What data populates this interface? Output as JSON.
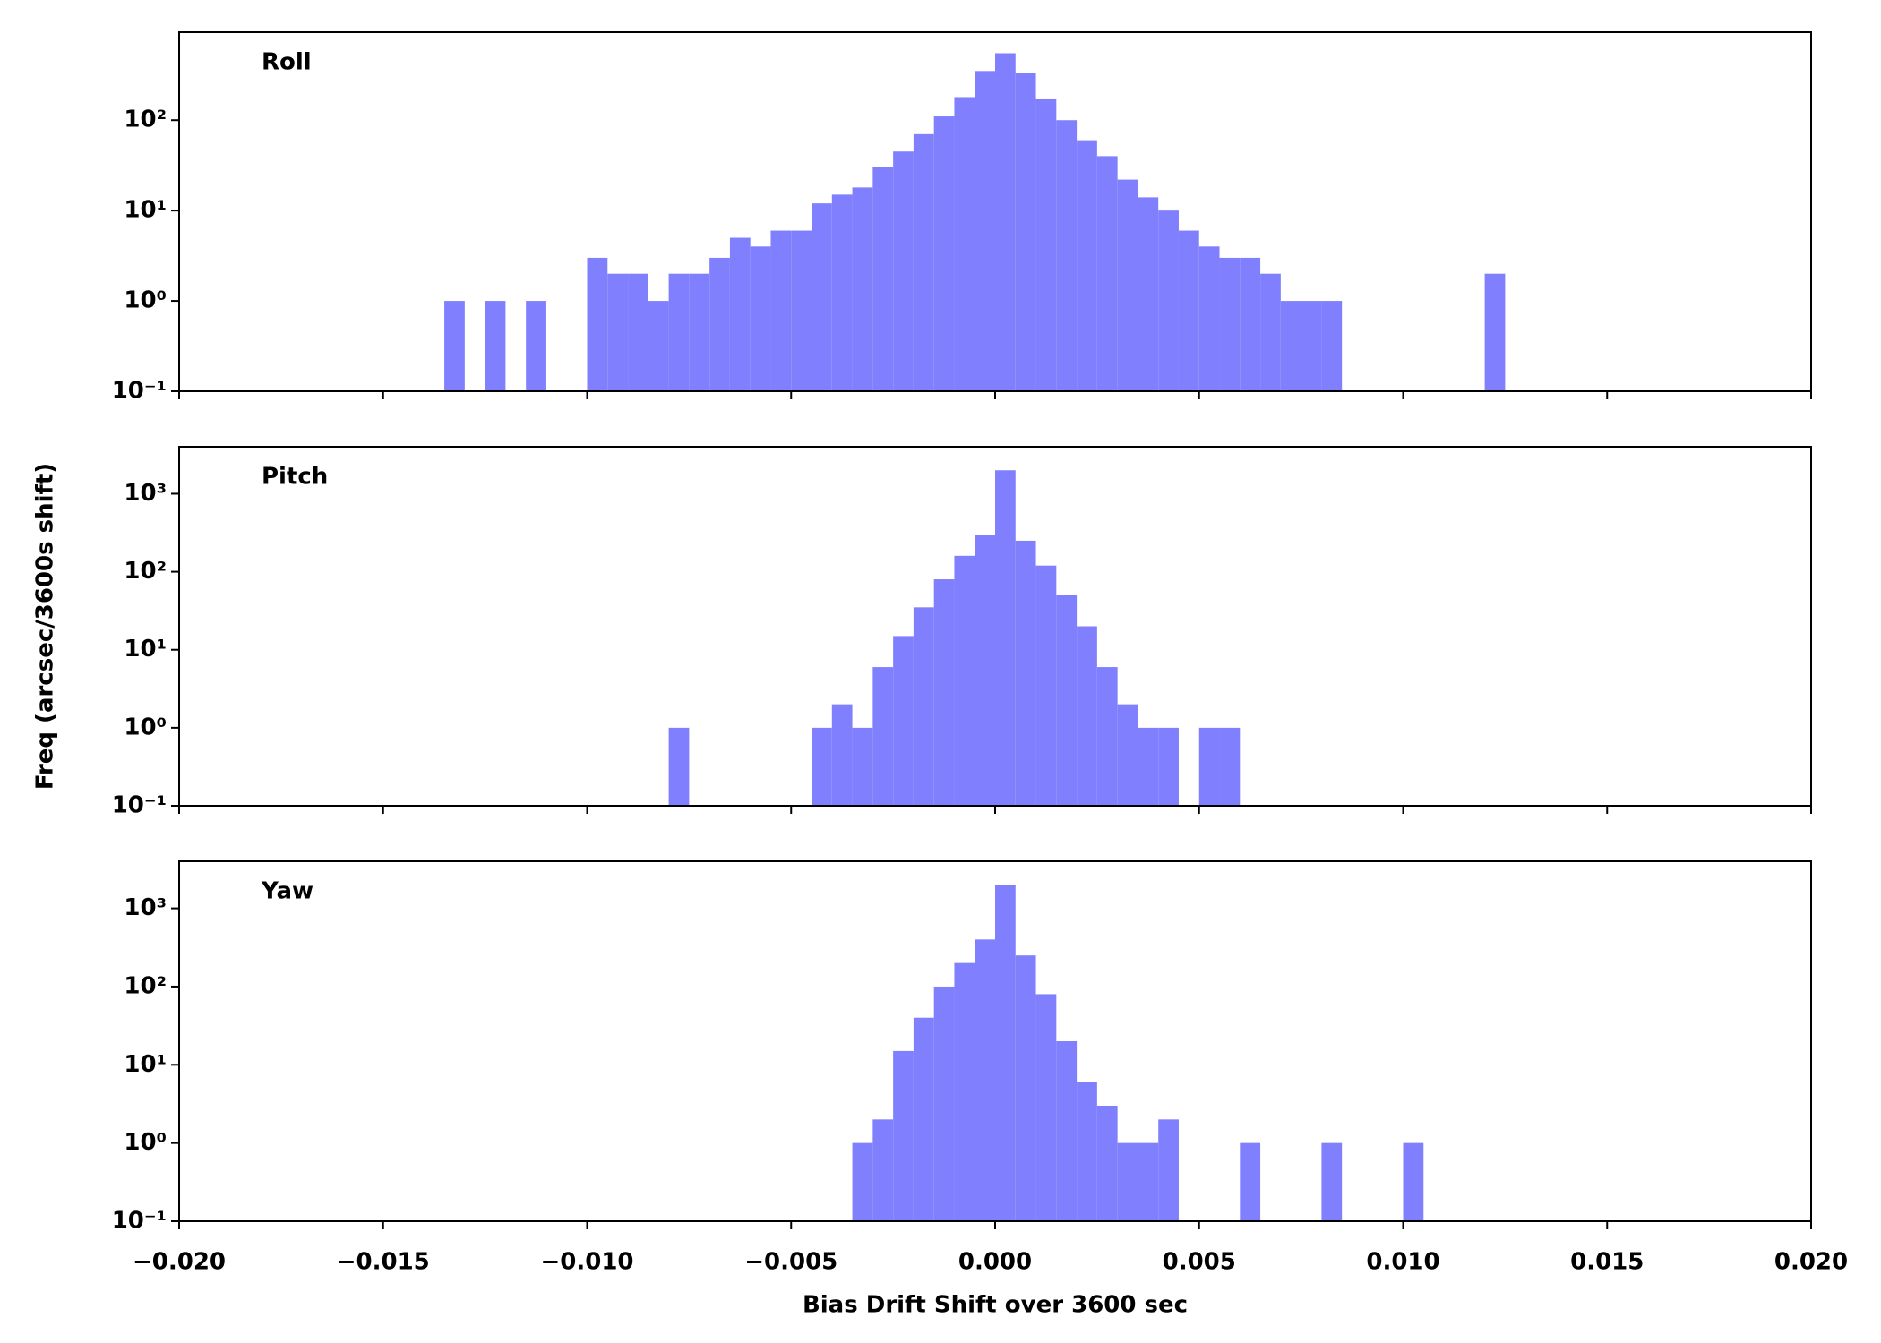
{
  "chart_data": [
    {
      "type": "histogram",
      "title": "Roll",
      "color": "#8080ff",
      "log_y": true,
      "xlim": [
        -0.02,
        0.02
      ],
      "ylim": [
        0.1,
        940
      ],
      "yticks": [
        {
          "value": 0.1,
          "label": "10⁻¹"
        },
        {
          "value": 1,
          "label": "10⁰"
        },
        {
          "value": 10,
          "label": "10¹"
        },
        {
          "value": 100,
          "label": "10²"
        }
      ],
      "bins": [
        -0.014,
        -0.0135,
        -0.013,
        -0.0125,
        -0.012,
        -0.0115,
        -0.011,
        -0.0105,
        -0.01,
        -0.0095,
        -0.009,
        -0.0085,
        -0.008,
        -0.0075,
        -0.007,
        -0.0065,
        -0.006,
        -0.0055,
        -0.005,
        -0.0045,
        -0.004,
        -0.0035,
        -0.003,
        -0.0025,
        -0.002,
        -0.0015,
        -0.001,
        -0.0005,
        0,
        0.0005,
        0.001,
        0.0015,
        0.002,
        0.0025,
        0.003,
        0.0035,
        0.004,
        0.0045,
        0.005,
        0.0055,
        0.006,
        0.0065,
        0.007,
        0.0075,
        0.008,
        0.0085,
        0.009,
        0.0095,
        0.01,
        0.0105,
        0.011,
        0.0115,
        0.012,
        0.0125
      ],
      "values": [
        0,
        1,
        0,
        1,
        0,
        1,
        0,
        0,
        3,
        2,
        2,
        1,
        2,
        2,
        3,
        5,
        4,
        6,
        6,
        12,
        15,
        18,
        30,
        45,
        70,
        110,
        180,
        350,
        550,
        330,
        170,
        100,
        60,
        40,
        22,
        14,
        10,
        6,
        4,
        3,
        3,
        2,
        1,
        1,
        1,
        0,
        0,
        0,
        0,
        0,
        0,
        0,
        2
      ]
    },
    {
      "type": "histogram",
      "title": "Pitch",
      "color": "#8080ff",
      "log_y": true,
      "ylabel": "Freq (arcsec/3600s shift)",
      "xlim": [
        -0.02,
        0.02
      ],
      "ylim": [
        0.1,
        4000
      ],
      "yticks": [
        {
          "value": 0.1,
          "label": "10⁻¹"
        },
        {
          "value": 1,
          "label": "10⁰"
        },
        {
          "value": 10,
          "label": "10¹"
        },
        {
          "value": 100,
          "label": "10²"
        },
        {
          "value": 1000,
          "label": "10³"
        }
      ],
      "bins": [
        -0.008,
        -0.0075,
        -0.007,
        -0.0065,
        -0.006,
        -0.0055,
        -0.005,
        -0.0045,
        -0.004,
        -0.0035,
        -0.003,
        -0.0025,
        -0.002,
        -0.0015,
        -0.001,
        -0.0005,
        0,
        0.0005,
        0.001,
        0.0015,
        0.002,
        0.0025,
        0.003,
        0.0035,
        0.004,
        0.0045,
        0.005,
        0.0055,
        0.006
      ],
      "values": [
        1,
        0,
        0,
        0,
        0,
        0,
        0,
        1,
        2,
        1,
        6,
        15,
        35,
        80,
        160,
        300,
        2000,
        250,
        120,
        50,
        20,
        6,
        2,
        1,
        1,
        0,
        1,
        1
      ]
    },
    {
      "type": "histogram",
      "title": "Yaw",
      "color": "#8080ff",
      "log_y": true,
      "xlabel": "Bias Drift Shift over 3600 sec",
      "xlim": [
        -0.02,
        0.02
      ],
      "ylim": [
        0.1,
        4000
      ],
      "xticks": [
        {
          "value": -0.02,
          "label": "−0.020"
        },
        {
          "value": -0.015,
          "label": "−0.015"
        },
        {
          "value": -0.01,
          "label": "−0.010"
        },
        {
          "value": -0.005,
          "label": "−0.005"
        },
        {
          "value": 0,
          "label": "0.000"
        },
        {
          "value": 0.005,
          "label": "0.005"
        },
        {
          "value": 0.01,
          "label": "0.010"
        },
        {
          "value": 0.015,
          "label": "0.015"
        },
        {
          "value": 0.02,
          "label": "0.020"
        }
      ],
      "yticks": [
        {
          "value": 0.1,
          "label": "10⁻¹"
        },
        {
          "value": 1,
          "label": "10⁰"
        },
        {
          "value": 10,
          "label": "10¹"
        },
        {
          "value": 100,
          "label": "10²"
        },
        {
          "value": 1000,
          "label": "10³"
        }
      ],
      "bins": [
        -0.0035,
        -0.003,
        -0.0025,
        -0.002,
        -0.0015,
        -0.001,
        -0.0005,
        0,
        0.0005,
        0.001,
        0.0015,
        0.002,
        0.0025,
        0.003,
        0.0035,
        0.004,
        0.0045,
        0.005,
        0.0055,
        0.006,
        0.0065,
        0.007,
        0.0075,
        0.008,
        0.0085,
        0.009,
        0.0095,
        0.01,
        0.0105
      ],
      "values": [
        1,
        2,
        15,
        40,
        100,
        200,
        400,
        2000,
        250,
        80,
        20,
        6,
        3,
        1,
        1,
        2,
        0,
        0,
        0,
        1,
        0,
        0,
        0,
        1,
        0,
        0,
        0,
        1
      ]
    }
  ]
}
